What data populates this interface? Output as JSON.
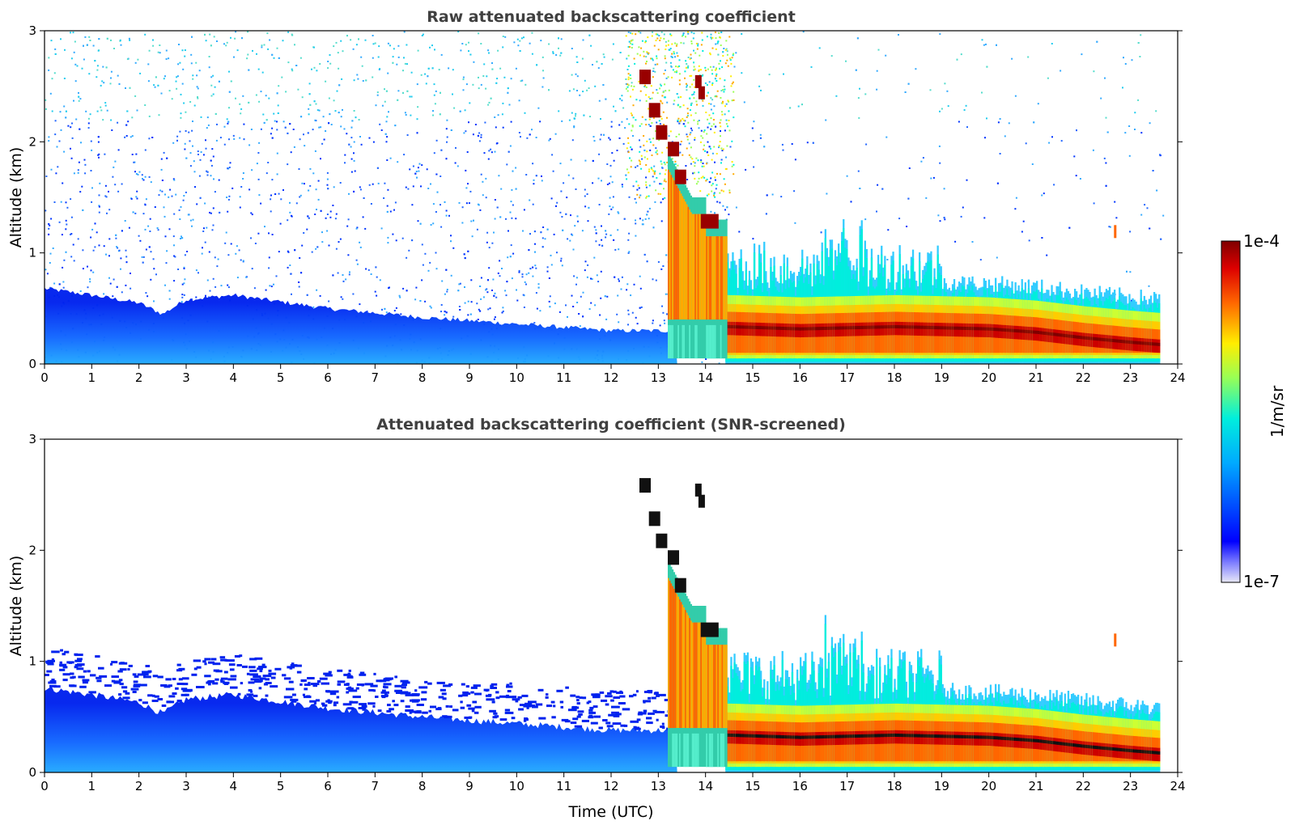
{
  "chart_data": [
    {
      "type": "heatmap",
      "title": "Raw attenuated backscattering coefficient",
      "xlabel": "",
      "ylabel": "Altitude (km)",
      "xlim": [
        0,
        24
      ],
      "ylim": [
        0,
        3
      ],
      "xticks": [
        "0",
        "1",
        "2",
        "3",
        "4",
        "5",
        "6",
        "7",
        "8",
        "9",
        "10",
        "11",
        "12",
        "13",
        "14",
        "15",
        "16",
        "17",
        "18",
        "19",
        "20",
        "21",
        "22",
        "23",
        "24"
      ],
      "yticks": [
        "0",
        "1",
        "2",
        "3"
      ],
      "description_series": [
        {
          "name": "boundary layer top (km)",
          "x": [
            0,
            1,
            2,
            2.5,
            3,
            4,
            6,
            8,
            10,
            12,
            13.3
          ],
          "values": [
            0.68,
            0.62,
            0.55,
            0.45,
            0.58,
            0.62,
            0.5,
            0.42,
            0.36,
            0.3,
            0.3
          ]
        },
        {
          "name": "cloud base (km)",
          "x": [
            14.5,
            16,
            18,
            20,
            21,
            22,
            23,
            23.6
          ],
          "values": [
            0.32,
            0.3,
            0.32,
            0.3,
            0.27,
            0.22,
            0.18,
            0.16
          ]
        }
      ]
    },
    {
      "type": "heatmap",
      "title": "Attenuated backscattering coefficient (SNR-screened)",
      "xlabel": "Time (UTC)",
      "ylabel": "Altitude (km)",
      "xlim": [
        0,
        24
      ],
      "ylim": [
        0,
        3
      ],
      "xticks": [
        "0",
        "1",
        "2",
        "3",
        "4",
        "5",
        "6",
        "7",
        "8",
        "9",
        "10",
        "11",
        "12",
        "13",
        "14",
        "15",
        "16",
        "17",
        "18",
        "19",
        "20",
        "21",
        "22",
        "23",
        "24"
      ],
      "yticks": [
        "0",
        "1",
        "2",
        "3"
      ]
    }
  ],
  "colorbar": {
    "label": "1/m/sr",
    "max_label": "1e-4",
    "min_label": "1e-7",
    "colormap": "jet"
  }
}
